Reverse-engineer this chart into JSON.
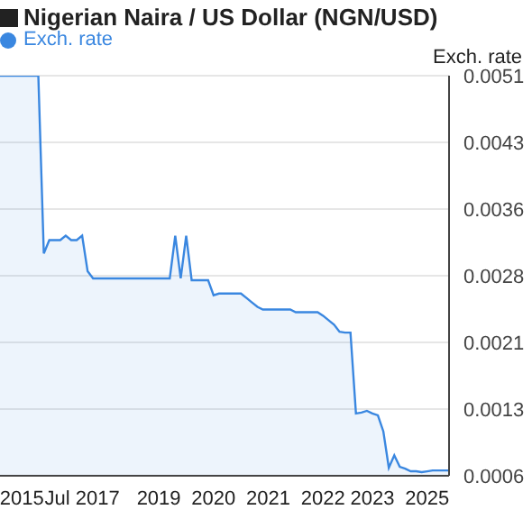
{
  "chart_data": {
    "type": "area",
    "title": "Nigerian Naira / US Dollar (NGN/USD)",
    "ylabel": "Exch. rate",
    "categories": [
      null,
      null,
      null,
      null,
      "2015",
      null,
      null,
      null,
      null,
      null,
      null,
      null,
      null,
      null,
      null,
      "Jul 2017",
      null,
      null,
      null,
      null,
      null,
      null,
      null,
      null,
      null,
      null,
      null,
      null,
      null,
      "2019",
      null,
      null,
      null,
      null,
      null,
      null,
      null,
      null,
      null,
      "2020",
      null,
      null,
      null,
      null,
      null,
      null,
      null,
      null,
      null,
      "2021",
      null,
      null,
      null,
      null,
      null,
      null,
      null,
      null,
      null,
      "2022",
      null,
      null,
      null,
      null,
      null,
      null,
      null,
      null,
      "2023",
      null,
      null,
      null,
      null,
      null,
      null,
      null,
      null,
      null,
      "2025",
      null,
      null,
      null,
      null
    ],
    "series": [
      {
        "name": "Exch. rate",
        "color": "#3a87e0",
        "values": [
          0.0051,
          0.0051,
          0.0051,
          0.0051,
          0.0051,
          0.0051,
          0.0051,
          0.0051,
          0.0031,
          0.00325,
          0.00325,
          0.00325,
          0.0033,
          0.00325,
          0.00325,
          0.0033,
          0.0029,
          0.00282,
          0.00282,
          0.00282,
          0.00282,
          0.00282,
          0.00282,
          0.00282,
          0.00282,
          0.00282,
          0.00282,
          0.00282,
          0.00282,
          0.00282,
          0.00282,
          0.00282,
          0.0033,
          0.00282,
          0.0033,
          0.0028,
          0.0028,
          0.0028,
          0.0028,
          0.00263,
          0.00265,
          0.00265,
          0.00265,
          0.00265,
          0.00265,
          0.0026,
          0.00255,
          0.0025,
          0.00247,
          0.00247,
          0.00247,
          0.00247,
          0.00247,
          0.00247,
          0.00244,
          0.00244,
          0.00244,
          0.00244,
          0.00244,
          0.0024,
          0.00235,
          0.0023,
          0.00222,
          0.00221,
          0.00221,
          0.0013,
          0.00131,
          0.00133,
          0.0013,
          0.00128,
          0.0011,
          0.00069,
          0.00083,
          0.0007,
          0.00068,
          0.00065,
          0.00065,
          0.00064,
          0.00065,
          0.00066,
          0.00066,
          0.00066,
          0.00066
        ]
      }
    ],
    "ylim": [
      0.0006,
      0.0051
    ],
    "yticks": [
      0.0006,
      {
        "value": 0.00135,
        "label": "0.0013"
      },
      0.0021,
      {
        "value": 0.00285,
        "label": "0.0028"
      },
      0.0036,
      {
        "value": 0.00435,
        "label": "0.0043"
      },
      0.0051
    ],
    "grid": "y",
    "legend": "top left"
  }
}
